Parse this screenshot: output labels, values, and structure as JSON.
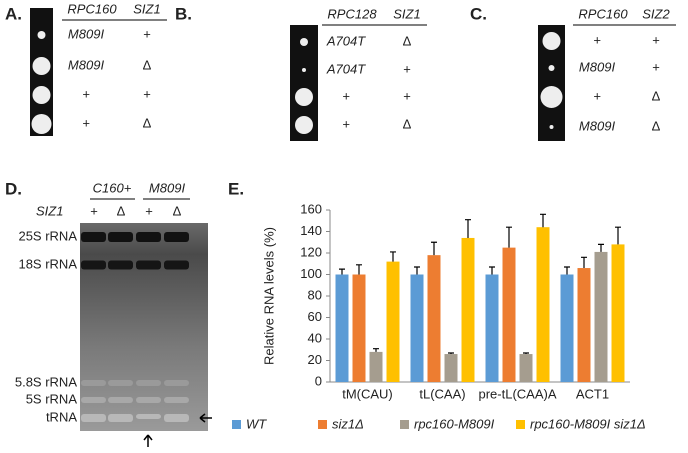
{
  "panels": {
    "a": {
      "label": "A.",
      "headers": [
        "RPC160",
        "SIZ1"
      ],
      "rows": [
        [
          "M809I",
          "+"
        ],
        [
          "M809I",
          "Δ"
        ],
        [
          "+",
          "+"
        ],
        [
          "+",
          "Δ"
        ]
      ]
    },
    "b": {
      "label": "B.",
      "headers": [
        "RPC128",
        "SIZ1"
      ],
      "rows": [
        [
          "A704T",
          "Δ"
        ],
        [
          "A704T",
          "+"
        ],
        [
          "+",
          "+"
        ],
        [
          "+",
          "Δ"
        ]
      ]
    },
    "c": {
      "label": "C.",
      "headers": [
        "RPC160",
        "SIZ2"
      ],
      "rows": [
        [
          "+",
          "+"
        ],
        [
          "M809I",
          "+"
        ],
        [
          "+",
          "Δ"
        ],
        [
          "M809I",
          "Δ"
        ]
      ]
    },
    "d": {
      "label": "D.",
      "strains": [
        "C160+",
        "M809I"
      ],
      "row_label": "SIZ1",
      "lanes": [
        "+",
        "Δ",
        "+",
        "Δ"
      ],
      "bands": [
        "25S rRNA",
        "18S rRNA",
        "5.8S rRNA",
        "5S rRNA",
        "tRNA"
      ]
    }
  },
  "chart_data": {
    "type": "bar",
    "panel_label": "E.",
    "y_label": "Relative RNA levels (%)",
    "categories": [
      "tM(CAU)",
      "tL(CAA)",
      "pre-tL(CAA)A",
      "ACT1"
    ],
    "series": [
      {
        "name": "WT",
        "color": "#5b9bd5",
        "values": [
          100,
          100,
          100,
          100
        ],
        "errors": [
          5,
          7,
          7,
          7
        ]
      },
      {
        "name": "siz1Δ",
        "color": "#ed7d31",
        "values": [
          100,
          118,
          125,
          106
        ],
        "errors": [
          9,
          12,
          19,
          10
        ]
      },
      {
        "name": "rpc160-M809I",
        "color": "#a59d8f",
        "values": [
          28,
          26,
          26,
          121
        ],
        "errors": [
          3,
          1,
          1,
          7
        ]
      },
      {
        "name": "rpc160-M809I siz1Δ",
        "color": "#ffc000",
        "values": [
          112,
          134,
          144,
          128
        ],
        "errors": [
          9,
          17,
          12,
          16
        ]
      }
    ],
    "ylim": [
      0,
      160
    ],
    "yticks": [
      0,
      20,
      40,
      60,
      80,
      100,
      120,
      140,
      160
    ],
    "legend": "bottom"
  }
}
